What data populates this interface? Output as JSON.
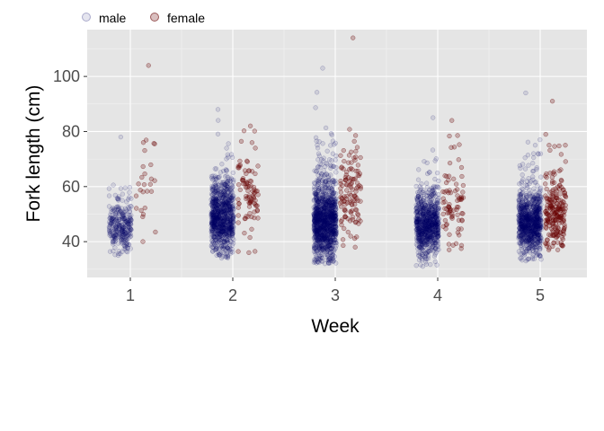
{
  "chart_data": {
    "type": "scatter",
    "subtype": "jittered strip plot by group",
    "xlabel": "Week",
    "ylabel": "Fork length (cm)",
    "categories": [
      "1",
      "2",
      "3",
      "4",
      "5"
    ],
    "yticks": [
      40,
      60,
      80,
      100
    ],
    "ylim": [
      27,
      117
    ],
    "grid": true,
    "background": "#e5e5e5",
    "legend": {
      "position": "top-left",
      "entries": [
        "male",
        "female"
      ]
    },
    "series": [
      {
        "name": "male",
        "color": "#000066",
        "fill_opacity": 0.1,
        "dodge": -0.1,
        "approx_counts": [
          300,
          900,
          1200,
          800,
          900
        ],
        "median": [
          44,
          46,
          45,
          44,
          45
        ],
        "spread": [
          5,
          7,
          8,
          6,
          6
        ],
        "range": [
          [
            35,
            78
          ],
          [
            34,
            88
          ],
          [
            32,
            103
          ],
          [
            31,
            85
          ],
          [
            33,
            94
          ]
        ]
      },
      {
        "name": "female",
        "color": "#660000",
        "fill_opacity": 0.25,
        "dodge": 0.15,
        "approx_counts": [
          25,
          90,
          120,
          80,
          220
        ],
        "median": [
          55,
          55,
          55,
          52,
          48
        ],
        "spread": [
          7,
          8,
          9,
          9,
          8
        ],
        "range": [
          [
            40,
            104
          ],
          [
            36,
            82
          ],
          [
            38,
            114
          ],
          [
            37,
            84
          ],
          [
            37,
            91
          ]
        ]
      }
    ]
  }
}
